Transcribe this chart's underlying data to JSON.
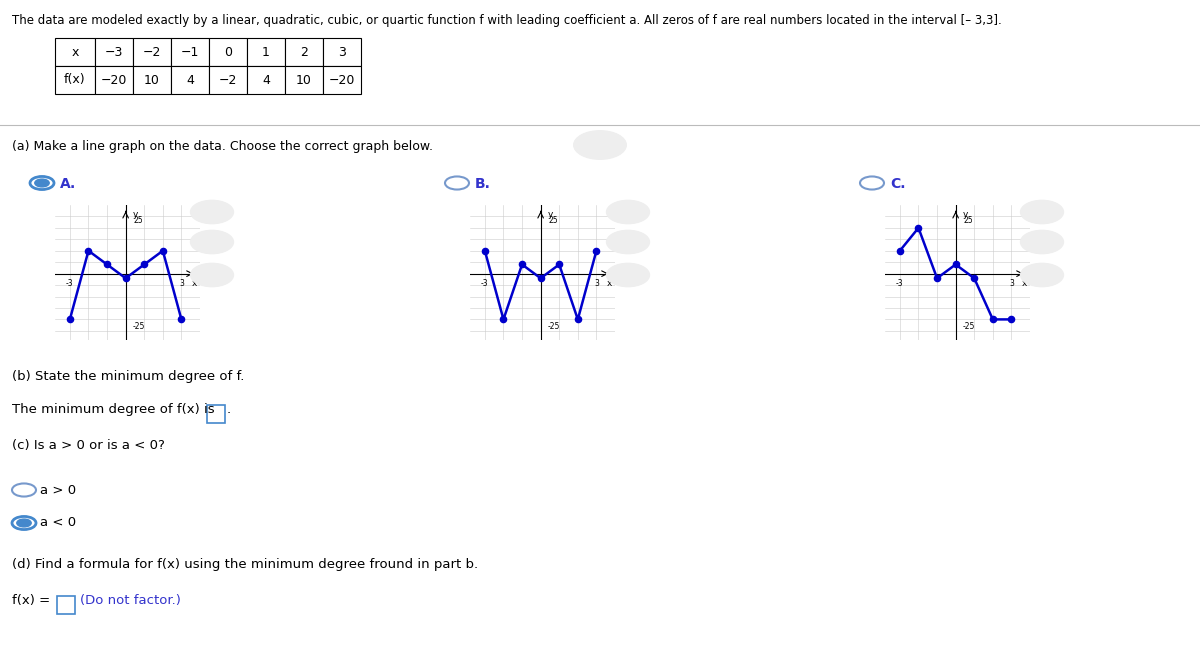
{
  "header_text": "The data are modeled exactly by a linear, quadratic, cubic, or quartic function f with leading coefficient a. All zeros of f are real numbers located in the interval [– 3,3].",
  "table_x_labels": [
    "x",
    "−3",
    "−2",
    "−1",
    "0",
    "1",
    "2",
    "3"
  ],
  "table_fx_labels": [
    "f(x)",
    "−20",
    "10",
    "4",
    "−2",
    "4",
    "10",
    "−20"
  ],
  "part_a_label": "(a) Make a line graph on the data. Choose the correct graph below.",
  "graph_A_x": [
    -3,
    -2,
    -1,
    0,
    1,
    2,
    3
  ],
  "graph_A_y": [
    -20,
    10,
    4,
    -2,
    4,
    10,
    -20
  ],
  "graph_B_x": [
    -3,
    -2,
    -1,
    0,
    1,
    2,
    3
  ],
  "graph_B_y": [
    10,
    -20,
    4,
    -2,
    4,
    -20,
    10
  ],
  "graph_C_x": [
    -3,
    -2,
    -1,
    0,
    1,
    2,
    3
  ],
  "graph_C_y": [
    10,
    20,
    -2,
    4,
    -2,
    -20,
    -20
  ],
  "part_b_text1": "(b) State the minimum degree of f.",
  "part_b_text2": "The minimum degree of f(x) is",
  "part_c_text": "(c) Is a > 0 or is a < 0?",
  "option_gt": "a > 0",
  "option_lt": "a < 0",
  "part_d_text": "(d) Find a formula for f(x) using the minimum degree fround in part b.",
  "part_d_answer": "f(x) =",
  "part_d_note": "(Do not factor.)",
  "line_color": "#0000cc",
  "dot_color": "#0000cc",
  "bg_color": "#ffffff",
  "text_color": "#000000",
  "blue_text": "#3333cc",
  "radio_selected_color": "#4488cc",
  "radio_unselected_color": "#7799cc",
  "box_border_color": "#4488cc",
  "divider_color": "#bbbbbb"
}
